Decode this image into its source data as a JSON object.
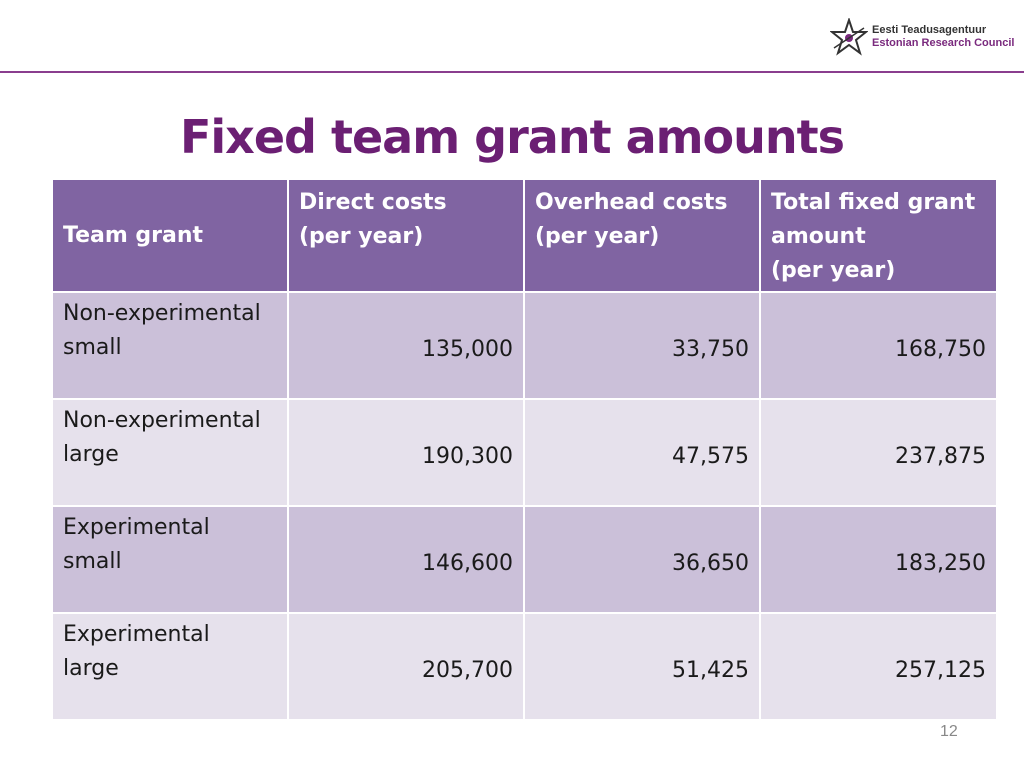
{
  "header": {
    "logo_line1": "Eesti Teadusagentuur",
    "logo_line2": "Estonian Research Council",
    "logo_icon": "star-emblem-icon"
  },
  "slide": {
    "title": "Fixed team grant amounts",
    "page_number": "12"
  },
  "table": {
    "headers": {
      "team_grant": "Team grant",
      "direct_line1": "Direct costs",
      "direct_line2": "(per year)",
      "overhead_line1": "Overhead costs",
      "overhead_line2": "(per year)",
      "total_line1": "Total fixed grant",
      "total_line2": "amount",
      "total_line3": "(per year)"
    },
    "rows": [
      {
        "name_line1": "Non-experimental",
        "name_line2": "small",
        "direct": "135,000",
        "overhead": "33,750",
        "total": "168,750"
      },
      {
        "name_line1": "Non-experimental",
        "name_line2": "large",
        "direct": "190,300",
        "overhead": "47,575",
        "total": "237,875"
      },
      {
        "name_line1": "Experimental",
        "name_line2": "small",
        "direct": "146,600",
        "overhead": "36,650",
        "total": "183,250"
      },
      {
        "name_line1": "Experimental",
        "name_line2": "large",
        "direct": "205,700",
        "overhead": "51,425",
        "total": "257,125"
      }
    ]
  },
  "colors": {
    "title": "#6b1f73",
    "header_bg": "#8064a2",
    "row_dark_bg": "#cbc0d9",
    "row_light_bg": "#e6e1ec",
    "rule": "#8a3d8e"
  }
}
